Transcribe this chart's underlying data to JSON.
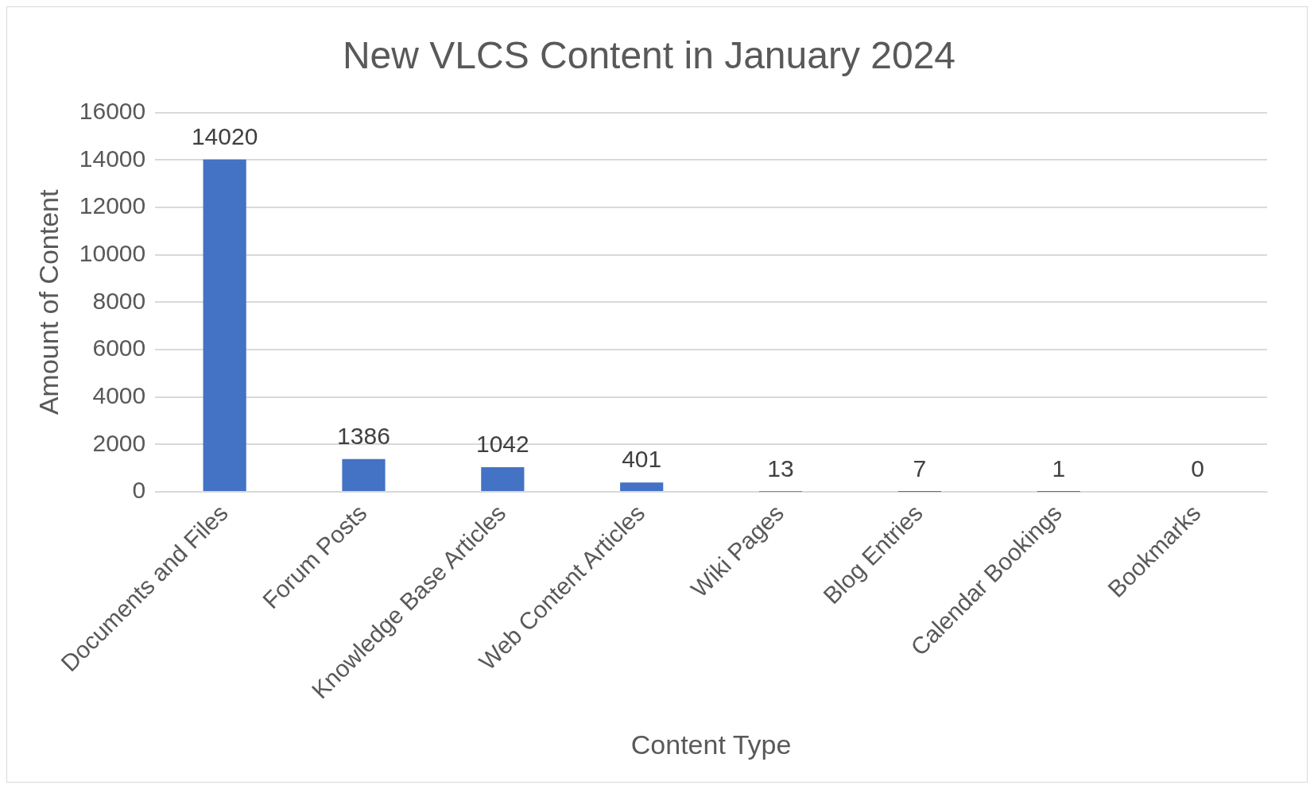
{
  "chart_data": {
    "type": "bar",
    "title": "New VLCS Content in January 2024",
    "xlabel": "Content Type",
    "ylabel": "Amount of Content",
    "categories": [
      "Documents and Files",
      "Forum Posts",
      "Knowledge Base Articles",
      "Web Content Articles",
      "Wiki Pages",
      "Blog Entries",
      "Calendar Bookings",
      "Bookmarks"
    ],
    "values": [
      14020,
      1386,
      1042,
      401,
      13,
      7,
      1,
      0
    ],
    "color": "#4472c4",
    "ylim": [
      0,
      16000
    ],
    "yticks": [
      0,
      2000,
      4000,
      6000,
      8000,
      10000,
      12000,
      14000,
      16000
    ],
    "grid": "y",
    "legend": false,
    "data_labels": true
  }
}
